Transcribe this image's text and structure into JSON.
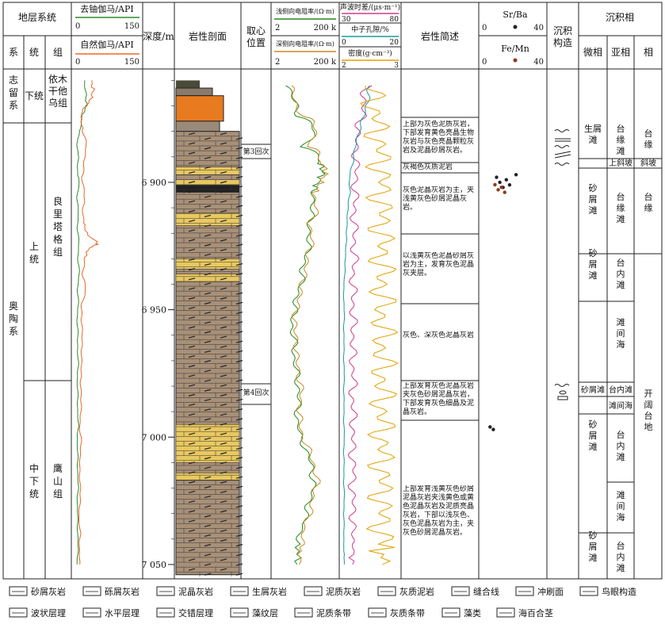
{
  "header": {
    "strat_system": "地层系统",
    "sys": "系",
    "ser": "统",
    "fm": "组",
    "depth": "深度/m",
    "litho": "岩性剖面",
    "core_pos": "取心位置",
    "desc": "岩性简述",
    "sed_struct": "沉积构造",
    "facies": "沉积相",
    "microfacies": "微相",
    "subfacies": "亚相",
    "fac": "相"
  },
  "track1": {
    "curve1": {
      "name": "去铀伽马/API",
      "min": "0",
      "max": "150",
      "color": "#2e8b2e"
    },
    "curve2": {
      "name": "自然伽马/API",
      "min": "0",
      "max": "150",
      "color": "#e8682a"
    }
  },
  "track2": {
    "curve1": {
      "name": "浅侧向电阻率/(Ω·m)",
      "min": "2",
      "max": "200 k",
      "color": "#1e8a1e"
    },
    "curve2": {
      "name": "深侧向电阻率/(Ω·m)",
      "min": "2",
      "max": "200 k",
      "color": "#c88a20"
    }
  },
  "track3": {
    "curve1": {
      "name": "声波时差/(μs·m⁻¹)",
      "min": "30",
      "max": "80",
      "color": "#d03a8c"
    },
    "curve2": {
      "name": "中子孔隙/%",
      "min": "0",
      "max": "20",
      "color": "#1a9a9a"
    },
    "curve3": {
      "name": "密度(g·cm⁻³)",
      "min": "2",
      "max": "3",
      "color": "#e0a000"
    }
  },
  "geochem": {
    "srba": {
      "name": "Sr/Ba",
      "min": "0",
      "max": "40"
    },
    "femn": {
      "name": "Fe/Mn",
      "min": "0",
      "max": "40"
    }
  },
  "strat": {
    "top_sys": "志留系",
    "top_ser": "下统",
    "top_fm": "依木干他乌组",
    "main_sys": "奥陶系",
    "ser_upper": "上统",
    "fm_upper": "良里塔格组",
    "ser_lower": "中下统",
    "fm_lower": "鹰山组"
  },
  "depths": [
    "6 900",
    "6 950",
    "7 000",
    "7 050"
  ],
  "cores": [
    "第3回次",
    "第4回次"
  ],
  "descriptions": [
    "上部为灰色泥质灰岩，下部发育黄色亮晶生物灰岩与灰色亮晶颗粒灰岩及泥晶砂屑灰岩。",
    "灰褐色灰质泥岩",
    "灰色泥晶灰岩为主，夹浅黄灰色砂屑泥晶灰岩。",
    "以浅黄灰色泥晶砂屑灰岩为主，发育灰色泥晶灰夹层。",
    "灰色、深灰色泥晶灰岩",
    "上部发育灰色泥晶灰岩夹灰色砂屑泥晶灰岩，下部发育灰色细晶及泥晶灰岩。",
    "上部发育浅黄灰色砂屑泥晶灰岩夹浅黄色或黄色泥晶灰岩及泥质亮晶灰岩，下部以浅灰色、灰色泥晶灰岩为主，夹灰色砂屑泥晶灰岩。"
  ],
  "facies_table": {
    "micro": [
      "生屑滩",
      "砂屑滩",
      "砂屑滩",
      "砂屑滩",
      "砂屑滩",
      "砂屑滩"
    ],
    "sub": [
      "台缘滩",
      "上斜坡",
      "台缘滩",
      "台内滩",
      "滩间海",
      "台内滩",
      "滩间海",
      "台内滩",
      "滩间海",
      "台内滩"
    ],
    "fac": [
      "台缘",
      "斜坡",
      "台缘",
      "开阔台地"
    ]
  },
  "legend": [
    "砂屑灰岩",
    "砾屑灰岩",
    "泥晶灰岩",
    "生屑灰岩",
    "泥质灰岩",
    "灰质泥岩",
    "缝合线",
    "冲刷面",
    "鸟眼构造",
    "波状层理",
    "水平层理",
    "交错层理",
    "藻纹层",
    "泥质条带",
    "灰质条带",
    "藻类",
    "海百合茎"
  ],
  "chart_data": {
    "type": "line",
    "xlabel": "",
    "ylabel": "深度/m",
    "ylim": [
      6858,
      7055
    ],
    "depth_ticks": [
      6900,
      6950,
      7000,
      7050
    ],
    "series": [
      {
        "name": "去铀伽马/API",
        "x_range": [
          0,
          150
        ],
        "values": [
          [
            6860,
            25
          ],
          [
            6866,
            28
          ],
          [
            6870,
            30
          ],
          [
            6874,
            20
          ],
          [
            6880,
            15
          ],
          [
            6885,
            8
          ],
          [
            6890,
            12
          ],
          [
            6896,
            10
          ],
          [
            6900,
            14
          ],
          [
            6906,
            9
          ],
          [
            6912,
            12
          ],
          [
            6918,
            10
          ],
          [
            6924,
            13
          ],
          [
            6930,
            11
          ],
          [
            6936,
            14
          ],
          [
            6942,
            10
          ],
          [
            6948,
            12
          ],
          [
            6954,
            9
          ],
          [
            6960,
            11
          ],
          [
            6966,
            10
          ],
          [
            6972,
            12
          ],
          [
            6978,
            9
          ],
          [
            6984,
            11
          ],
          [
            6990,
            10
          ],
          [
            6996,
            12
          ],
          [
            7002,
            9
          ],
          [
            7008,
            11
          ],
          [
            7014,
            10
          ],
          [
            7020,
            12
          ],
          [
            7026,
            9
          ],
          [
            7032,
            11
          ],
          [
            7038,
            10
          ],
          [
            7044,
            12
          ],
          [
            7050,
            9
          ]
        ]
      },
      {
        "name": "自然伽马/API",
        "x_range": [
          0,
          150
        ],
        "values": [
          [
            6860,
            40
          ],
          [
            6864,
            45
          ],
          [
            6868,
            38
          ],
          [
            6872,
            20
          ],
          [
            6876,
            18
          ],
          [
            6880,
            22
          ],
          [
            6886,
            30
          ],
          [
            6892,
            25
          ],
          [
            6898,
            20
          ],
          [
            6904,
            26
          ],
          [
            6910,
            22
          ],
          [
            6916,
            24
          ],
          [
            6920,
            30
          ],
          [
            6924,
            55
          ],
          [
            6926,
            35
          ],
          [
            6930,
            25
          ],
          [
            6936,
            22
          ],
          [
            6942,
            28
          ],
          [
            6948,
            20
          ],
          [
            6954,
            18
          ],
          [
            6960,
            22
          ],
          [
            6966,
            18
          ],
          [
            6972,
            20
          ],
          [
            6978,
            16
          ],
          [
            6984,
            19
          ],
          [
            6990,
            17
          ],
          [
            6996,
            15
          ],
          [
            7002,
            18
          ],
          [
            7008,
            16
          ],
          [
            7014,
            14
          ],
          [
            7020,
            17
          ],
          [
            7026,
            15
          ],
          [
            7032,
            13
          ],
          [
            7038,
            16
          ],
          [
            7044,
            14
          ],
          [
            7050,
            15
          ]
        ]
      },
      {
        "name": "浅侧向电阻率/(Ω·m)",
        "x_range": [
          2,
          200000
        ],
        "values": [
          [
            6862,
            30
          ],
          [
            6868,
            80
          ],
          [
            6874,
            200
          ],
          [
            6880,
            3000
          ],
          [
            6886,
            500
          ],
          [
            6892,
            8000
          ],
          [
            6896,
            15000
          ],
          [
            6900,
            6000
          ],
          [
            6904,
            2000
          ],
          [
            6910,
            3000
          ],
          [
            6916,
            1000
          ],
          [
            6922,
            1500
          ],
          [
            6928,
            800
          ],
          [
            6934,
            400
          ],
          [
            6940,
            300
          ],
          [
            6946,
            120
          ],
          [
            6952,
            80
          ],
          [
            6958,
            60
          ],
          [
            6964,
            100
          ],
          [
            6970,
            90
          ],
          [
            6976,
            150
          ],
          [
            6982,
            200
          ],
          [
            6988,
            180
          ],
          [
            6994,
            150
          ],
          [
            7000,
            250
          ],
          [
            7006,
            800
          ],
          [
            7012,
            2000
          ],
          [
            7018,
            3000
          ],
          [
            7024,
            1500
          ],
          [
            7030,
            800
          ],
          [
            7036,
            300
          ],
          [
            7042,
            200
          ],
          [
            7050,
            150
          ]
        ]
      },
      {
        "name": "深侧向电阻率/(Ω·m)",
        "x_range": [
          2,
          200000
        ],
        "values": [
          [
            6862,
            40
          ],
          [
            6868,
            100
          ],
          [
            6874,
            300
          ],
          [
            6880,
            5000
          ],
          [
            6886,
            800
          ],
          [
            6892,
            12000
          ],
          [
            6896,
            25000
          ],
          [
            6900,
            9000
          ],
          [
            6904,
            3000
          ],
          [
            6910,
            4500
          ],
          [
            6916,
            1500
          ],
          [
            6922,
            2000
          ],
          [
            6928,
            1200
          ],
          [
            6934,
            600
          ],
          [
            6940,
            400
          ],
          [
            6946,
            180
          ],
          [
            6952,
            120
          ],
          [
            6958,
            90
          ],
          [
            6964,
            150
          ],
          [
            6970,
            130
          ],
          [
            6976,
            220
          ],
          [
            6982,
            300
          ],
          [
            6988,
            260
          ],
          [
            6994,
            220
          ],
          [
            7000,
            400
          ],
          [
            7006,
            1200
          ],
          [
            7012,
            3500
          ],
          [
            7018,
            5000
          ],
          [
            7024,
            2500
          ],
          [
            7030,
            1200
          ],
          [
            7036,
            500
          ],
          [
            7042,
            300
          ],
          [
            7050,
            220
          ]
        ]
      },
      {
        "name": "声波时差/(μs·m⁻¹)",
        "x_range": [
          30,
          80
        ],
        "values": [
          [
            6862,
            52
          ],
          [
            6868,
            50
          ],
          [
            6874,
            48
          ],
          [
            6880,
            45
          ],
          [
            6886,
            42
          ],
          [
            6892,
            44
          ],
          [
            6898,
            42
          ],
          [
            6904,
            43
          ],
          [
            6910,
            41
          ],
          [
            6916,
            42
          ],
          [
            6922,
            41
          ],
          [
            6928,
            42
          ],
          [
            6934,
            41
          ],
          [
            6940,
            40
          ],
          [
            6946,
            41
          ],
          [
            6952,
            40
          ],
          [
            6958,
            41
          ],
          [
            6964,
            40
          ],
          [
            6970,
            40
          ],
          [
            6976,
            41
          ],
          [
            6982,
            40
          ],
          [
            6988,
            40
          ],
          [
            6994,
            41
          ],
          [
            7000,
            40
          ],
          [
            7006,
            40
          ],
          [
            7012,
            41
          ],
          [
            7018,
            40
          ],
          [
            7024,
            40
          ],
          [
            7030,
            41
          ],
          [
            7036,
            40
          ],
          [
            7042,
            40
          ],
          [
            7050,
            40
          ]
        ]
      },
      {
        "name": "中子孔隙/%",
        "x_range": [
          0,
          20
        ],
        "values": [
          [
            6862,
            10
          ],
          [
            6868,
            9
          ],
          [
            6874,
            8
          ],
          [
            6880,
            6
          ],
          [
            6886,
            5
          ],
          [
            6892,
            4
          ],
          [
            6898,
            3
          ],
          [
            6904,
            3
          ],
          [
            6910,
            2.5
          ],
          [
            6916,
            2
          ],
          [
            6922,
            2
          ],
          [
            6928,
            1.5
          ],
          [
            6934,
            1.5
          ],
          [
            6940,
            1
          ],
          [
            6946,
            1
          ],
          [
            6952,
            1.2
          ],
          [
            6958,
            1
          ],
          [
            6964,
            1.1
          ],
          [
            6970,
            1
          ],
          [
            6976,
            1.2
          ],
          [
            6982,
            1
          ],
          [
            6988,
            1.1
          ],
          [
            6994,
            1
          ],
          [
            7000,
            1.2
          ],
          [
            7006,
            1
          ],
          [
            7012,
            1.1
          ],
          [
            7018,
            1
          ],
          [
            7024,
            1.2
          ],
          [
            7030,
            1
          ],
          [
            7036,
            1.1
          ],
          [
            7042,
            1
          ],
          [
            7050,
            1.2
          ]
        ]
      },
      {
        "name": "密度(g·cm⁻³)",
        "x_range": [
          2,
          3
        ],
        "values": [
          [
            6862,
            2.5
          ],
          [
            6868,
            2.55
          ],
          [
            6874,
            2.6
          ],
          [
            6880,
            2.62
          ],
          [
            6886,
            2.65
          ],
          [
            6892,
            2.68
          ],
          [
            6898,
            2.7
          ],
          [
            6904,
            2.69
          ],
          [
            6910,
            2.7
          ],
          [
            6916,
            2.71
          ],
          [
            6922,
            2.7
          ],
          [
            6928,
            2.71
          ],
          [
            6934,
            2.7
          ],
          [
            6940,
            2.71
          ],
          [
            6946,
            2.7
          ],
          [
            6952,
            2.71
          ],
          [
            6958,
            2.7
          ],
          [
            6964,
            2.71
          ],
          [
            6970,
            2.7
          ],
          [
            6976,
            2.71
          ],
          [
            6982,
            2.7
          ],
          [
            6988,
            2.71
          ],
          [
            6994,
            2.7
          ],
          [
            7000,
            2.71
          ],
          [
            7006,
            2.7
          ],
          [
            7012,
            2.71
          ],
          [
            7018,
            2.7
          ],
          [
            7024,
            2.71
          ],
          [
            7030,
            2.7
          ],
          [
            7036,
            2.71
          ],
          [
            7042,
            2.7
          ],
          [
            7050,
            2.71
          ]
        ]
      }
    ],
    "srba_points": [
      [
        6898,
        10
      ],
      [
        6900,
        12
      ],
      [
        6902,
        14
      ],
      [
        6899,
        16
      ],
      [
        6901,
        18
      ],
      [
        6897,
        22
      ],
      [
        6996,
        6
      ],
      [
        6997,
        8
      ]
    ],
    "femn_points": [
      [
        6900,
        9
      ],
      [
        6902,
        11
      ],
      [
        6901,
        13
      ],
      [
        6903,
        15
      ]
    ]
  }
}
